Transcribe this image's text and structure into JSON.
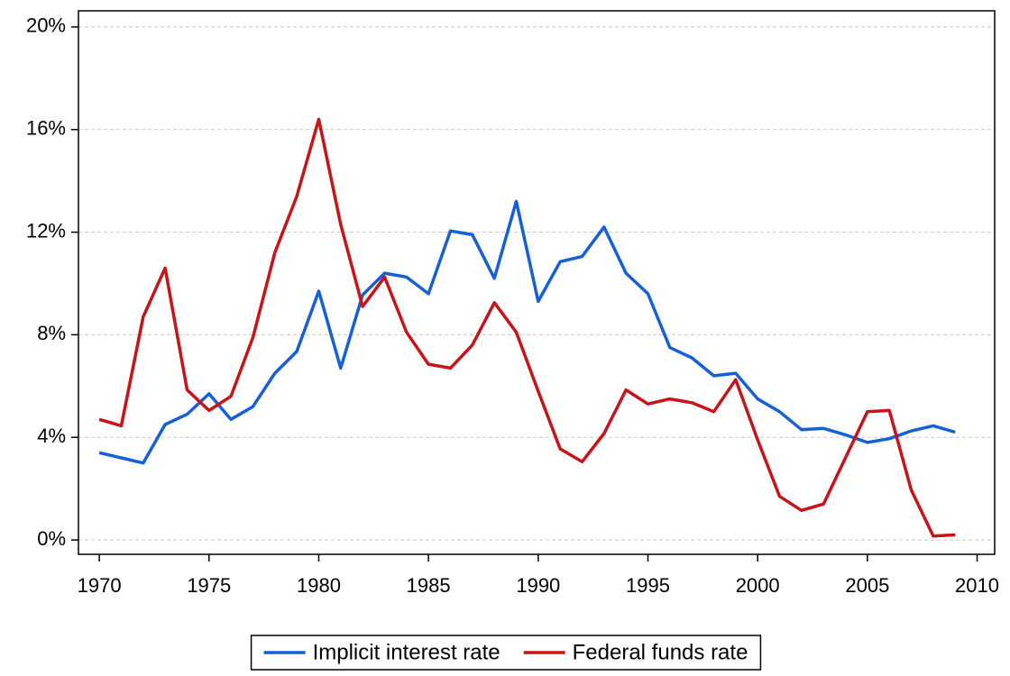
{
  "chart_data": {
    "type": "line",
    "x": [
      1970,
      1971,
      1972,
      1973,
      1974,
      1975,
      1976,
      1977,
      1978,
      1979,
      1980,
      1981,
      1982,
      1983,
      1984,
      1985,
      1986,
      1987,
      1988,
      1989,
      1990,
      1991,
      1992,
      1993,
      1994,
      1995,
      1996,
      1997,
      1998,
      1999,
      2000,
      2001,
      2002,
      2003,
      2004,
      2005,
      2006,
      2007,
      2008,
      2009
    ],
    "series": [
      {
        "name": "Implicit interest rate",
        "color": "#1560d8",
        "values": [
          3.4,
          3.2,
          3.0,
          4.5,
          4.9,
          5.7,
          4.7,
          5.2,
          6.5,
          7.35,
          9.7,
          6.7,
          9.55,
          10.4,
          10.25,
          9.6,
          12.05,
          11.9,
          10.2,
          13.2,
          9.3,
          10.85,
          11.05,
          12.2,
          10.4,
          9.6,
          7.5,
          7.1,
          6.4,
          6.5,
          5.5,
          5.0,
          4.3,
          4.35,
          4.1,
          3.8,
          3.95,
          4.25,
          4.45,
          4.2
        ]
      },
      {
        "name": "Federal funds rate",
        "color": "#c81418",
        "values": [
          4.7,
          4.45,
          8.7,
          10.6,
          5.85,
          5.05,
          5.6,
          7.9,
          11.2,
          13.4,
          16.4,
          12.3,
          9.1,
          10.25,
          8.1,
          6.85,
          6.7,
          7.6,
          9.25,
          8.1,
          5.8,
          3.55,
          3.05,
          4.15,
          5.85,
          5.3,
          5.5,
          5.35,
          5.0,
          6.25,
          3.9,
          1.7,
          1.15,
          1.4,
          3.2,
          5.0,
          5.05,
          1.95,
          0.15,
          0.2
        ]
      }
    ],
    "xlim": [
      1969.05,
      2010.8
    ],
    "xticks": [
      1970,
      1975,
      1980,
      1985,
      1990,
      1995,
      2000,
      2005,
      2010
    ],
    "ylim": [
      -0.56,
      20.63
    ],
    "yticks": [
      {
        "value": 0,
        "label": "0%"
      },
      {
        "value": 4,
        "label": "4%"
      },
      {
        "value": 8,
        "label": "8%"
      },
      {
        "value": 12,
        "label": "12%"
      },
      {
        "value": 16,
        "label": "16%"
      },
      {
        "value": 20,
        "label": "20%"
      }
    ],
    "grid": true,
    "legend": "bottom"
  }
}
